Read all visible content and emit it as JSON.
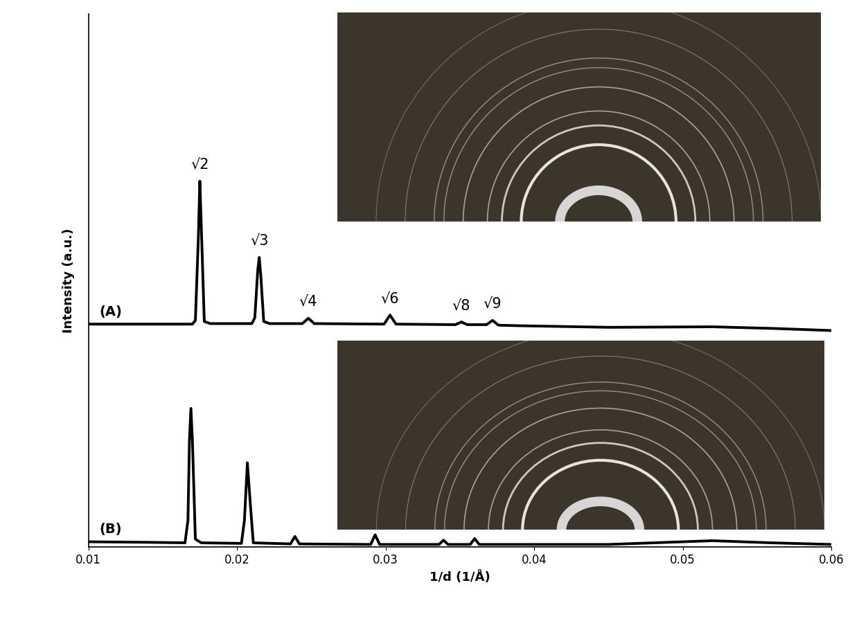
{
  "chart_data": {
    "type": "line",
    "xlabel": "1/d (1/Å)",
    "ylabel": "Intensity (a.u.)",
    "xlim": [
      0.01,
      0.06
    ],
    "xticks": [
      0.01,
      0.02,
      0.03,
      0.04,
      0.05,
      0.06
    ],
    "ylim": [
      0,
      100
    ],
    "tick_labels": "x",
    "grid": false,
    "series": [
      {
        "name": "(A)",
        "color": "#000000",
        "x": [
          0.01,
          0.017,
          0.0172,
          0.0174,
          0.0175,
          0.0176,
          0.0178,
          0.0182,
          0.021,
          0.0212,
          0.0214,
          0.0215,
          0.0216,
          0.0218,
          0.0222,
          0.0244,
          0.0248,
          0.0252,
          0.0299,
          0.0303,
          0.0307,
          0.0347,
          0.0351,
          0.0355,
          0.0368,
          0.0372,
          0.0376,
          0.039,
          0.045,
          0.052,
          0.056,
          0.06
        ],
        "values": [
          41.8,
          41.8,
          42.5,
          58,
          68.6,
          60,
          42.3,
          41.9,
          41.9,
          43,
          52,
          54.3,
          51,
          42.3,
          41.9,
          41.9,
          42.9,
          41.9,
          41.8,
          43.5,
          41.8,
          41.7,
          42.2,
          41.7,
          41.7,
          42.5,
          41.6,
          41.5,
          41.2,
          41.3,
          41.0,
          40.6
        ]
      },
      {
        "name": "(B)",
        "color": "#000000",
        "x": [
          0.01,
          0.014,
          0.0165,
          0.0167,
          0.0168,
          0.0169,
          0.017,
          0.0172,
          0.0176,
          0.0203,
          0.0205,
          0.0207,
          0.0209,
          0.0211,
          0.0236,
          0.0239,
          0.0242,
          0.029,
          0.0293,
          0.0296,
          0.0336,
          0.0339,
          0.0342,
          0.0357,
          0.036,
          0.0363,
          0.038,
          0.045,
          0.052,
          0.056,
          0.06
        ],
        "values": [
          1.0,
          0.9,
          0.8,
          5,
          20,
          26,
          20,
          1.5,
          0.8,
          0.7,
          5,
          15.8,
          8,
          0.8,
          0.6,
          2.0,
          0.6,
          0.5,
          2.3,
          0.5,
          0.5,
          1.3,
          0.5,
          0.5,
          1.6,
          0.5,
          0.5,
          0.5,
          1.2,
          0.8,
          0.5
        ]
      }
    ],
    "annotations": [
      {
        "text": "√2",
        "x": 0.0175,
        "y": 68.6
      },
      {
        "text": "√3",
        "x": 0.0215,
        "y": 54.3
      },
      {
        "text": "√4",
        "x": 0.0248,
        "y": 42.9
      },
      {
        "text": "√6",
        "x": 0.0303,
        "y": 43.5
      },
      {
        "text": "√8",
        "x": 0.0351,
        "y": 42.2
      },
      {
        "text": "√9",
        "x": 0.0372,
        "y": 42.5
      }
    ]
  }
}
